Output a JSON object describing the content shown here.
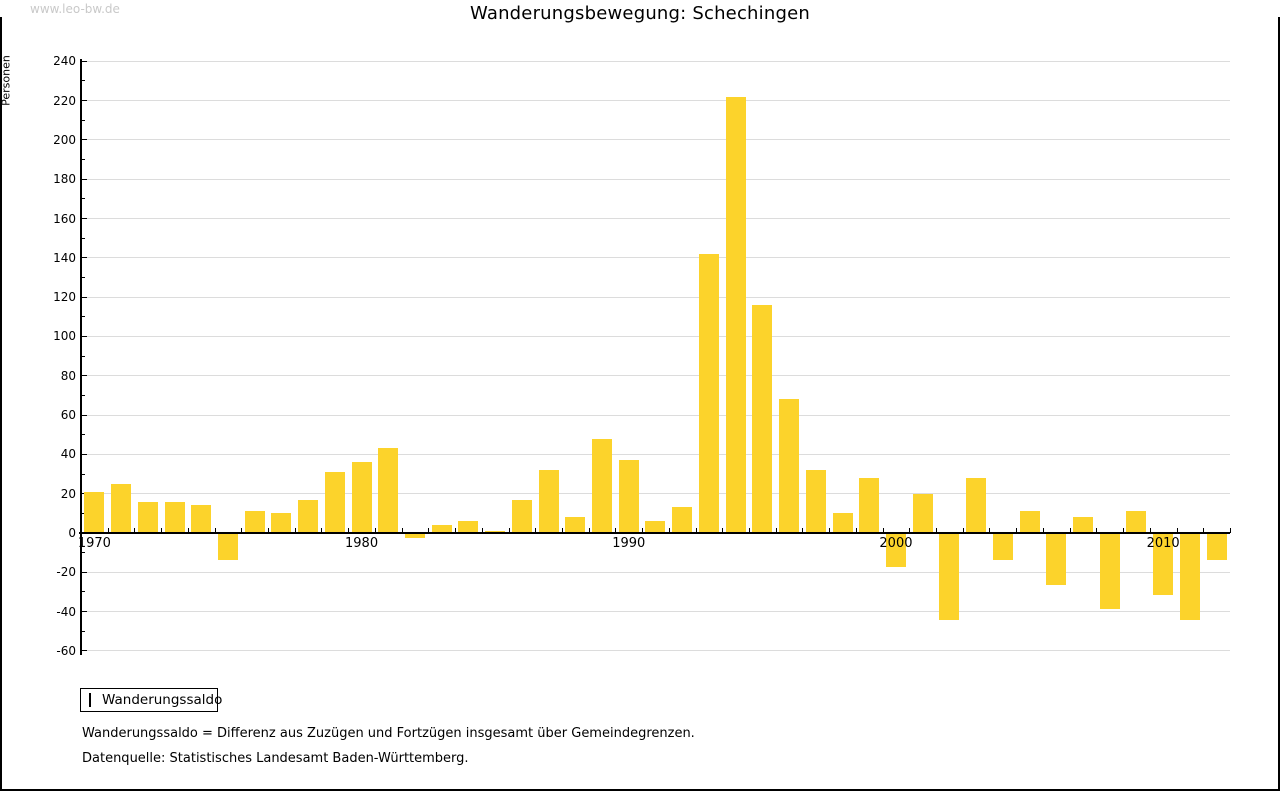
{
  "watermark": "www.leo-bw.de",
  "chart_data": {
    "type": "bar",
    "title": "Wanderungsbewegung: Schechingen",
    "ylabel": "Personen",
    "xlabel": "",
    "series_name": "Wanderungssaldo",
    "bar_color": "#fcd32b",
    "grid_color": "#dcdcdc",
    "ylim": [
      -60,
      240
    ],
    "ytick_step": 20,
    "grid": true,
    "legend_position": "bottom-left",
    "categories": [
      1970,
      1971,
      1972,
      1973,
      1974,
      1975,
      1976,
      1977,
      1978,
      1979,
      1980,
      1981,
      1982,
      1983,
      1984,
      1985,
      1986,
      1987,
      1988,
      1989,
      1990,
      1991,
      1992,
      1993,
      1994,
      1995,
      1996,
      1997,
      1998,
      1999,
      2000,
      2001,
      2002,
      2003,
      2004,
      2005,
      2006,
      2007,
      2008,
      2009,
      2010,
      2011,
      2012
    ],
    "values": [
      21,
      25,
      16,
      16,
      14,
      -13,
      11,
      10,
      17,
      31,
      36,
      43,
      -2,
      4,
      6,
      1,
      17,
      32,
      8,
      48,
      37,
      6,
      13,
      142,
      222,
      116,
      68,
      32,
      10,
      28,
      -17,
      20,
      -44,
      28,
      -13,
      11,
      -26,
      8,
      -38,
      11,
      -31,
      -44,
      -13
    ],
    "labeled_years": [
      1970,
      1980,
      1990,
      2000,
      2010
    ]
  },
  "legend": {
    "label": "Wanderungssaldo"
  },
  "footnotes": [
    "Wanderungssaldo = Differenz aus Zuzügen und Fortzügen insgesamt über Gemeindegrenzen.",
    "Datenquelle: Statistisches Landesamt Baden-Württemberg."
  ]
}
